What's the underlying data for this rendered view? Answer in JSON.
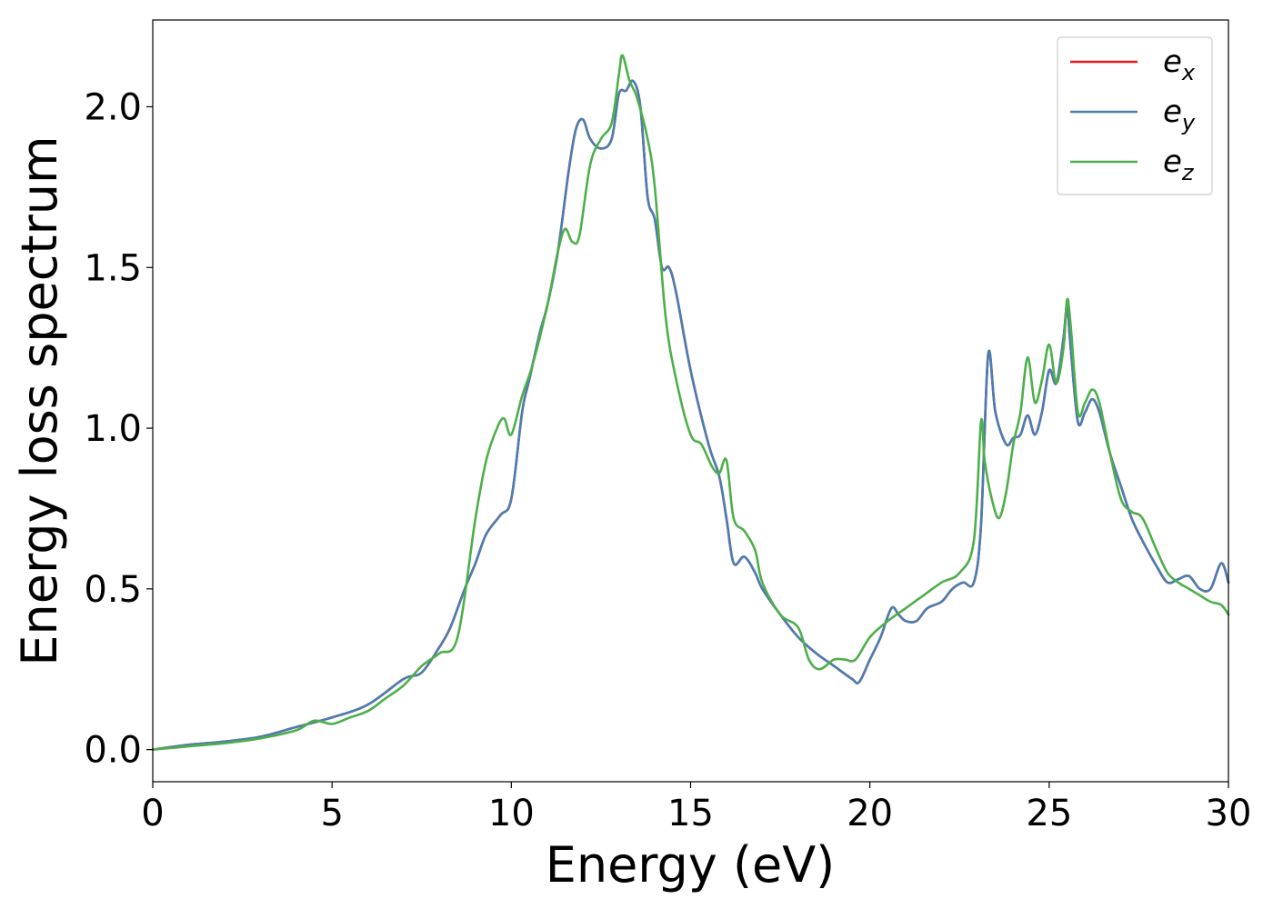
{
  "chart_data": {
    "type": "line",
    "xlabel": "Energy (eV)",
    "ylabel": "Energy loss spectrum",
    "xlim": [
      0,
      30
    ],
    "ylim": [
      -0.1,
      2.27
    ],
    "xticks": [
      "0",
      "5",
      "10",
      "15",
      "20",
      "25",
      "30"
    ],
    "yticks": [
      "0.0",
      "0.5",
      "1.0",
      "1.5",
      "2.0"
    ],
    "grid": false,
    "legend_position": "top-right",
    "series": [
      {
        "name": "e",
        "subscript": "x",
        "color": "#e41a1c",
        "x": [
          0,
          1,
          2,
          3,
          4,
          5,
          6,
          7,
          7.5,
          8,
          8.3,
          8.7,
          9,
          9.3,
          9.7,
          10,
          10.3,
          10.5,
          10.8,
          11,
          11.3,
          11.6,
          11.8,
          12,
          12.2,
          12.5,
          12.8,
          13,
          13.2,
          13.4,
          13.6,
          13.8,
          14,
          14.2,
          14.4,
          14.6,
          15,
          15.5,
          15.8,
          16,
          16.2,
          16.5,
          16.8,
          17,
          17.5,
          18,
          18.5,
          19,
          19.5,
          19.7,
          20,
          20.3,
          20.6,
          20.8,
          21,
          21.3,
          21.6,
          22,
          22.3,
          22.6,
          22.9,
          23.1,
          23.3,
          23.5,
          23.8,
          24,
          24.2,
          24.4,
          24.6,
          24.8,
          25,
          25.2,
          25.4,
          25.5,
          25.6,
          25.8,
          26,
          26.2,
          26.4,
          26.7,
          27,
          27.3,
          27.6,
          28,
          28.3,
          28.6,
          28.9,
          29.2,
          29.5,
          29.8,
          30
        ],
        "values": [
          0.0,
          0.015,
          0.025,
          0.04,
          0.07,
          0.1,
          0.14,
          0.22,
          0.24,
          0.32,
          0.38,
          0.5,
          0.58,
          0.67,
          0.73,
          0.78,
          1.05,
          1.15,
          1.3,
          1.38,
          1.55,
          1.8,
          1.93,
          1.96,
          1.9,
          1.87,
          1.9,
          2.04,
          2.05,
          2.08,
          2.0,
          1.72,
          1.65,
          1.5,
          1.5,
          1.42,
          1.18,
          0.95,
          0.85,
          0.72,
          0.58,
          0.6,
          0.55,
          0.5,
          0.42,
          0.35,
          0.3,
          0.26,
          0.22,
          0.21,
          0.28,
          0.35,
          0.44,
          0.42,
          0.4,
          0.4,
          0.44,
          0.46,
          0.5,
          0.52,
          0.52,
          0.7,
          1.23,
          1.05,
          0.95,
          0.97,
          0.98,
          1.04,
          0.98,
          1.05,
          1.18,
          1.14,
          1.28,
          1.38,
          1.25,
          1.02,
          1.05,
          1.09,
          1.05,
          0.92,
          0.82,
          0.72,
          0.65,
          0.57,
          0.52,
          0.53,
          0.54,
          0.5,
          0.5,
          0.58,
          0.52
        ]
      },
      {
        "name": "e",
        "subscript": "y",
        "color": "#4a7eb3",
        "x": [
          0,
          1,
          2,
          3,
          4,
          5,
          6,
          7,
          7.5,
          8,
          8.3,
          8.7,
          9,
          9.3,
          9.7,
          10,
          10.3,
          10.5,
          10.8,
          11,
          11.3,
          11.6,
          11.8,
          12,
          12.2,
          12.5,
          12.8,
          13,
          13.2,
          13.4,
          13.6,
          13.8,
          14,
          14.2,
          14.4,
          14.6,
          15,
          15.5,
          15.8,
          16,
          16.2,
          16.5,
          16.8,
          17,
          17.5,
          18,
          18.5,
          19,
          19.5,
          19.7,
          20,
          20.3,
          20.6,
          20.8,
          21,
          21.3,
          21.6,
          22,
          22.3,
          22.6,
          22.9,
          23.1,
          23.3,
          23.5,
          23.8,
          24,
          24.2,
          24.4,
          24.6,
          24.8,
          25,
          25.2,
          25.4,
          25.5,
          25.6,
          25.8,
          26,
          26.2,
          26.4,
          26.7,
          27,
          27.3,
          27.6,
          28,
          28.3,
          28.6,
          28.9,
          29.2,
          29.5,
          29.8,
          30
        ],
        "values": [
          0.0,
          0.015,
          0.025,
          0.04,
          0.07,
          0.1,
          0.14,
          0.22,
          0.24,
          0.32,
          0.38,
          0.5,
          0.58,
          0.67,
          0.73,
          0.78,
          1.05,
          1.15,
          1.3,
          1.38,
          1.55,
          1.8,
          1.93,
          1.96,
          1.9,
          1.87,
          1.9,
          2.04,
          2.05,
          2.08,
          2.0,
          1.72,
          1.65,
          1.5,
          1.5,
          1.42,
          1.18,
          0.95,
          0.85,
          0.72,
          0.58,
          0.6,
          0.55,
          0.5,
          0.42,
          0.35,
          0.3,
          0.26,
          0.22,
          0.21,
          0.28,
          0.35,
          0.44,
          0.42,
          0.4,
          0.4,
          0.44,
          0.46,
          0.5,
          0.52,
          0.52,
          0.7,
          1.23,
          1.05,
          0.95,
          0.97,
          0.98,
          1.04,
          0.98,
          1.05,
          1.18,
          1.14,
          1.28,
          1.38,
          1.25,
          1.02,
          1.05,
          1.09,
          1.05,
          0.92,
          0.82,
          0.72,
          0.65,
          0.57,
          0.52,
          0.53,
          0.54,
          0.5,
          0.5,
          0.58,
          0.52
        ]
      },
      {
        "name": "e",
        "subscript": "z",
        "color": "#4daf4a",
        "x": [
          0,
          1,
          2,
          3,
          4,
          4.5,
          5,
          5.5,
          6,
          6.5,
          7,
          7.5,
          8,
          8.5,
          9,
          9.3,
          9.6,
          9.8,
          10,
          10.3,
          10.6,
          11,
          11.3,
          11.5,
          11.7,
          11.9,
          12.2,
          12.5,
          12.8,
          13,
          13.1,
          13.3,
          13.5,
          13.8,
          14,
          14.3,
          14.6,
          15,
          15.3,
          15.6,
          15.8,
          16,
          16.2,
          16.5,
          16.8,
          17,
          17.5,
          18,
          18.3,
          18.6,
          19,
          19.3,
          19.6,
          20,
          20.5,
          21,
          21.5,
          22,
          22.5,
          22.9,
          23.1,
          23.2,
          23.4,
          23.6,
          23.8,
          24,
          24.2,
          24.4,
          24.6,
          24.8,
          25,
          25.2,
          25.4,
          25.5,
          25.6,
          25.8,
          26,
          26.2,
          26.4,
          26.7,
          27,
          27.3,
          27.6,
          28,
          28.3,
          28.6,
          28.9,
          29.2,
          29.5,
          29.8,
          30
        ],
        "values": [
          0.0,
          0.01,
          0.02,
          0.035,
          0.06,
          0.09,
          0.08,
          0.1,
          0.12,
          0.16,
          0.2,
          0.26,
          0.3,
          0.35,
          0.72,
          0.9,
          1.0,
          1.03,
          0.98,
          1.1,
          1.2,
          1.38,
          1.55,
          1.62,
          1.58,
          1.6,
          1.82,
          1.9,
          1.95,
          2.1,
          2.16,
          2.08,
          2.03,
          1.9,
          1.75,
          1.35,
          1.15,
          0.98,
          0.95,
          0.88,
          0.86,
          0.9,
          0.72,
          0.68,
          0.62,
          0.52,
          0.42,
          0.38,
          0.28,
          0.25,
          0.28,
          0.28,
          0.28,
          0.35,
          0.4,
          0.44,
          0.48,
          0.52,
          0.55,
          0.65,
          1.02,
          0.9,
          0.78,
          0.72,
          0.8,
          0.95,
          1.05,
          1.22,
          1.08,
          1.15,
          1.26,
          1.14,
          1.25,
          1.4,
          1.32,
          1.05,
          1.08,
          1.12,
          1.08,
          0.92,
          0.78,
          0.74,
          0.72,
          0.62,
          0.55,
          0.52,
          0.5,
          0.48,
          0.46,
          0.45,
          0.42
        ]
      }
    ]
  }
}
